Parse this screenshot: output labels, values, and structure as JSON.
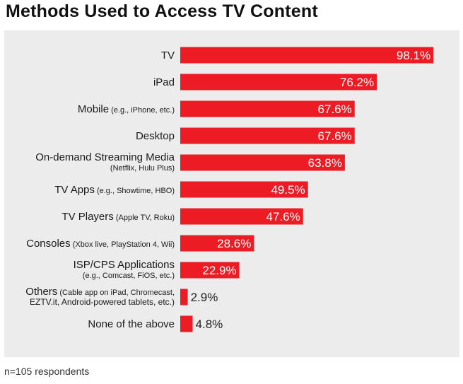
{
  "title": "Methods Used to Access TV Content",
  "footnote": "n=105 respondents",
  "colors": {
    "bar": "#ed1c24",
    "panel": "#ececec",
    "label": "#1a1a1a"
  },
  "chart_data": {
    "type": "bar",
    "orientation": "horizontal",
    "title": "Methods Used to Access TV Content",
    "xlim": [
      0,
      100
    ],
    "unit": "%",
    "categories": [
      {
        "main": "TV",
        "sub": "",
        "second": "",
        "value": 98.1,
        "label": "98.1%"
      },
      {
        "main": "iPad",
        "sub": "",
        "second": "",
        "value": 76.2,
        "label": "76.2%"
      },
      {
        "main": "Mobile",
        "sub": "(e.g., iPhone, etc.)",
        "second": "",
        "value": 67.6,
        "label": "67.6%"
      },
      {
        "main": "Desktop",
        "sub": "",
        "second": "",
        "value": 67.6,
        "label": "67.6%"
      },
      {
        "main": "On-demand Streaming Media",
        "sub": "",
        "second": "(Netflix, Hulu Plus)",
        "value": 63.8,
        "label": "63.8%"
      },
      {
        "main": "TV Apps",
        "sub": "(e.g., Showtime, HBO)",
        "second": "",
        "value": 49.5,
        "label": "49.5%"
      },
      {
        "main": "TV Players",
        "sub": "(Apple TV, Roku)",
        "second": "",
        "value": 47.6,
        "label": "47.6%"
      },
      {
        "main": "Consoles",
        "sub": "(Xbox live, PlayStation 4, Wii)",
        "second": "",
        "value": 28.6,
        "label": "28.6%"
      },
      {
        "main": "ISP/CPS Applications",
        "sub": "",
        "second": "(e.g., Comcast, FiOS, etc.)",
        "value": 22.9,
        "label": "22.9%"
      },
      {
        "main": "Others",
        "sub": "(Cable app on iPad, Chromecast,",
        "second": "EZTV.it, Android-powered tablets, etc.)",
        "value": 2.9,
        "label": "2.9%"
      },
      {
        "main": "None of the above",
        "sub": "",
        "second": "",
        "value": 4.8,
        "label": "4.8%"
      }
    ]
  }
}
